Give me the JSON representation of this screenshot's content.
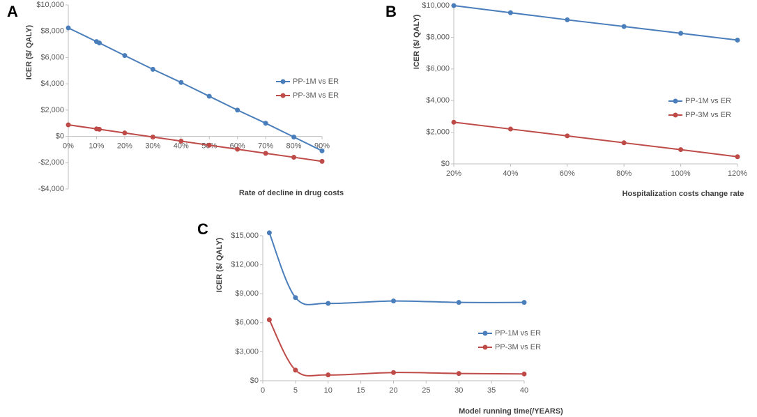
{
  "chart_data": [
    {
      "type": "line",
      "panel": "A",
      "xlabel": "Rate of decline in drug costs",
      "ylabel": "ICER ($/ QALY)",
      "x": [
        0,
        10,
        11,
        20,
        30,
        40,
        50,
        60,
        70,
        80,
        90
      ],
      "series": [
        {
          "name": "PP-1M vs ER",
          "color": "#4a7ebb",
          "values": [
            8250,
            7210,
            7106,
            6150,
            5100,
            4100,
            3050,
            2000,
            1000,
            -50,
            -1100
          ]
        },
        {
          "name": "PP-3M vs ER",
          "color": "#be4b48",
          "values": [
            880,
            570,
            540,
            260,
            -50,
            -360,
            -670,
            -980,
            -1290,
            -1590,
            -1900
          ]
        }
      ],
      "xlim": [
        0,
        90
      ],
      "xticks": [
        {
          "value": 0,
          "label": "0%"
        },
        {
          "value": 10,
          "label": "10%"
        },
        {
          "value": 20,
          "label": "20%"
        },
        {
          "value": 30,
          "label": "30%"
        },
        {
          "value": 40,
          "label": "40%"
        },
        {
          "value": 50,
          "label": "50%"
        },
        {
          "value": 60,
          "label": "60%"
        },
        {
          "value": 70,
          "label": "70%"
        },
        {
          "value": 80,
          "label": "80%"
        },
        {
          "value": 90,
          "label": "90%"
        }
      ],
      "ylim": [
        -4000,
        10000
      ],
      "yticks": [
        {
          "value": -4000,
          "label": "-$4,000"
        },
        {
          "value": -2000,
          "label": "-$2,000"
        },
        {
          "value": 0,
          "label": "$0"
        },
        {
          "value": 2000,
          "label": "$2,000"
        },
        {
          "value": 4000,
          "label": "$4,000"
        },
        {
          "value": 6000,
          "label": "$6,000"
        },
        {
          "value": 8000,
          "label": "$8,000"
        },
        {
          "value": 10000,
          "label": "$10,000"
        }
      ],
      "grid": false,
      "smooth": false,
      "legend": "right"
    },
    {
      "type": "line",
      "panel": "B",
      "xlabel": "Hospitalization costs change rate",
      "ylabel": "ICER ($/ QALY)",
      "x": [
        20,
        40,
        60,
        80,
        100,
        120
      ],
      "series": [
        {
          "name": "PP-1M vs ER",
          "color": "#4a7ebb",
          "values": [
            10000,
            9550,
            9100,
            8680,
            8250,
            7820
          ]
        },
        {
          "name": "PP-3M vs ER",
          "color": "#be4b48",
          "values": [
            2630,
            2200,
            1770,
            1330,
            900,
            450
          ]
        }
      ],
      "xlim": [
        20,
        120
      ],
      "xticks": [
        {
          "value": 20,
          "label": "20%"
        },
        {
          "value": 40,
          "label": "40%"
        },
        {
          "value": 60,
          "label": "60%"
        },
        {
          "value": 80,
          "label": "80%"
        },
        {
          "value": 100,
          "label": "100%"
        },
        {
          "value": 120,
          "label": "120%"
        }
      ],
      "ylim": [
        0,
        10000
      ],
      "yticks": [
        {
          "value": 0,
          "label": "$0"
        },
        {
          "value": 2000,
          "label": "$2,000"
        },
        {
          "value": 4000,
          "label": "$4,000"
        },
        {
          "value": 6000,
          "label": "$6,000"
        },
        {
          "value": 8000,
          "label": "$8,000"
        },
        {
          "value": 10000,
          "label": "$10,000"
        }
      ],
      "grid": false,
      "smooth": false,
      "legend": "right"
    },
    {
      "type": "line",
      "panel": "C",
      "xlabel": "Model running time(/YEARS)",
      "ylabel": "ICER ($/ QALY)",
      "x": [
        1,
        5,
        10,
        20,
        30,
        40
      ],
      "series": [
        {
          "name": "PP-1M vs ER",
          "color": "#4a7ebb",
          "values": [
            15300,
            8600,
            8000,
            8250,
            8100,
            8100
          ]
        },
        {
          "name": "PP-3M vs ER",
          "color": "#be4b48",
          "values": [
            6300,
            1100,
            600,
            850,
            750,
            700
          ]
        }
      ],
      "xlim": [
        0,
        40
      ],
      "xticks": [
        0,
        5,
        10,
        15,
        20,
        25,
        30,
        35,
        40
      ],
      "ylim": [
        0,
        15000
      ],
      "yticks": [
        {
          "value": 0,
          "label": "$0"
        },
        {
          "value": 3000,
          "label": "$3,000"
        },
        {
          "value": 6000,
          "label": "$6,000"
        },
        {
          "value": 9000,
          "label": "$9,000"
        },
        {
          "value": 12000,
          "label": "$12,000"
        },
        {
          "value": 15000,
          "label": "$15,000"
        }
      ],
      "grid": false,
      "smooth": true,
      "legend": "right"
    }
  ]
}
